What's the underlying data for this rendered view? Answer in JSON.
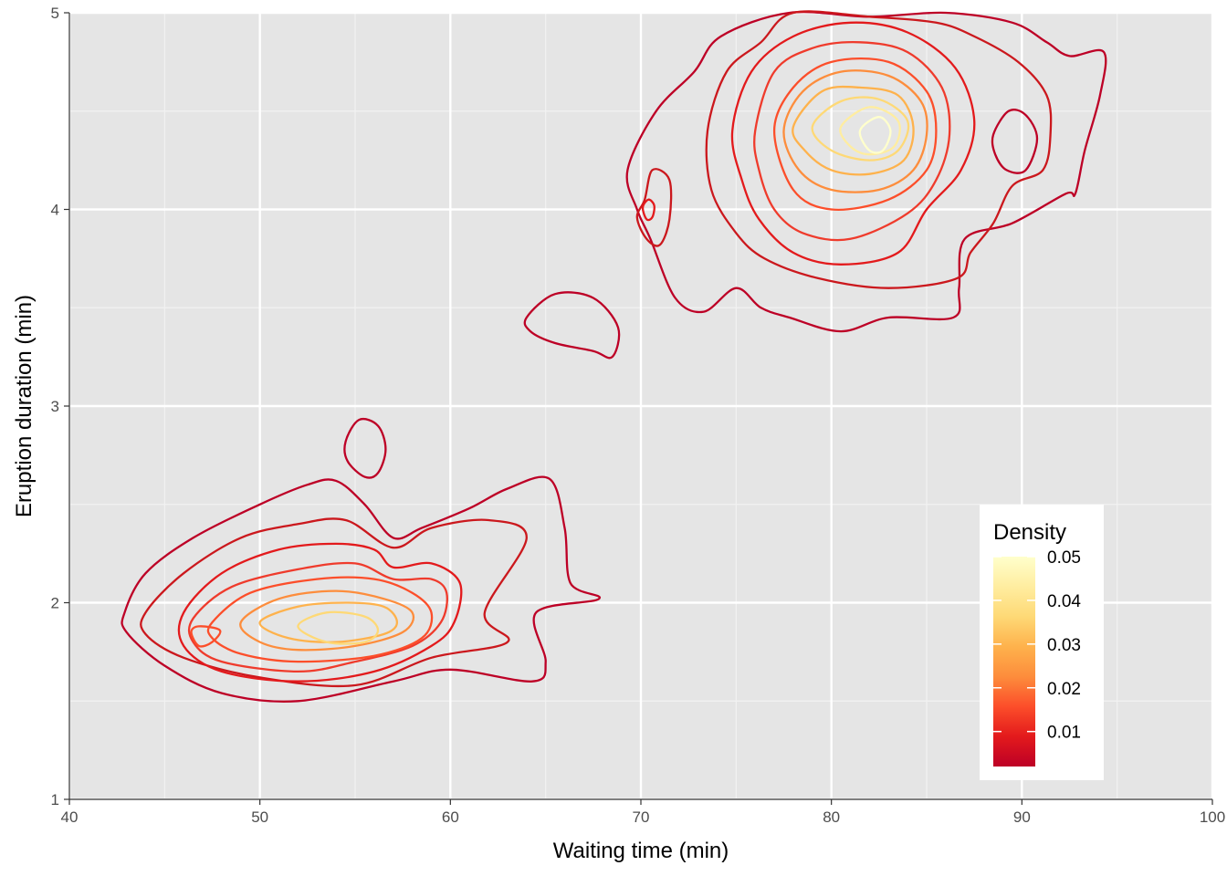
{
  "chart_data": {
    "type": "contour",
    "title": "",
    "xlabel": "Waiting time (min)",
    "ylabel": "Eruption duration (min)",
    "xlim": [
      40,
      100
    ],
    "ylim": [
      1,
      5
    ],
    "x_ticks": [
      40,
      50,
      60,
      70,
      80,
      90,
      100
    ],
    "y_ticks": [
      1,
      2,
      3,
      4,
      5
    ],
    "grid": true,
    "background": "#e5e5e5",
    "legend": {
      "title": "Density",
      "placement": "bottom-right-inside",
      "breaks": [
        0.05,
        0.04,
        0.03,
        0.02,
        0.01
      ],
      "range": [
        0.002,
        0.05
      ],
      "colors": [
        "#ffffcc",
        "#ffeda0",
        "#fed976",
        "#feb24c",
        "#fd8d3c",
        "#fc4e2a",
        "#e31a1c",
        "#bd0026"
      ]
    },
    "contours": [
      {
        "level": 0.005,
        "color": "#bd0026",
        "points": [
          [
            42.9,
            1.95
          ],
          [
            44,
            2.15
          ],
          [
            46.5,
            2.33
          ],
          [
            50,
            2.5
          ],
          [
            52.5,
            2.6
          ],
          [
            54,
            2.62
          ],
          [
            55.5,
            2.5
          ],
          [
            57,
            2.33
          ],
          [
            58.5,
            2.38
          ],
          [
            61,
            2.48
          ],
          [
            63,
            2.58
          ],
          [
            65.2,
            2.63
          ],
          [
            66,
            2.38
          ],
          [
            66.3,
            2.1
          ],
          [
            67.8,
            2.02
          ],
          [
            64.5,
            1.95
          ],
          [
            65,
            1.7
          ],
          [
            64.3,
            1.6
          ],
          [
            60,
            1.66
          ],
          [
            57,
            1.6
          ],
          [
            52,
            1.5
          ],
          [
            48,
            1.54
          ],
          [
            45,
            1.68
          ],
          [
            43,
            1.85
          ]
        ]
      },
      {
        "level": 0.005,
        "color": "#bd0026",
        "points": [
          [
            69.3,
            4.2
          ],
          [
            70.8,
            4.5
          ],
          [
            72.8,
            4.7
          ],
          [
            74.2,
            4.88
          ],
          [
            77.8,
            5
          ],
          [
            82,
            4.98
          ],
          [
            86,
            5
          ],
          [
            89.5,
            4.95
          ],
          [
            91.3,
            4.85
          ],
          [
            92.5,
            4.78
          ],
          [
            94.3,
            4.8
          ],
          [
            94.1,
            4.58
          ],
          [
            93.3,
            4.3
          ],
          [
            92.8,
            4.08
          ],
          [
            92.3,
            4.08
          ],
          [
            89.5,
            3.93
          ],
          [
            87,
            3.85
          ],
          [
            86.7,
            3.6
          ],
          [
            86.4,
            3.45
          ],
          [
            83,
            3.45
          ],
          [
            80.5,
            3.38
          ],
          [
            77.8,
            3.45
          ],
          [
            76.3,
            3.5
          ],
          [
            75,
            3.6
          ],
          [
            73.3,
            3.48
          ],
          [
            71.8,
            3.55
          ],
          [
            70.5,
            3.85
          ],
          [
            69.8,
            4
          ]
        ]
      },
      {
        "level": 0.01,
        "color": "#cb181d",
        "points": [
          [
            44,
            1.95
          ],
          [
            46,
            2.15
          ],
          [
            49,
            2.33
          ],
          [
            52,
            2.4
          ],
          [
            54.5,
            2.42
          ],
          [
            57,
            2.28
          ],
          [
            59,
            2.38
          ],
          [
            62,
            2.42
          ],
          [
            64,
            2.33
          ],
          [
            61.8,
            1.95
          ],
          [
            63,
            1.8
          ],
          [
            59,
            1.72
          ],
          [
            55,
            1.58
          ],
          [
            50,
            1.62
          ],
          [
            46,
            1.72
          ],
          [
            44,
            1.84
          ]
        ]
      },
      {
        "level": 0.01,
        "color": "#cb181d",
        "points": [
          [
            73.5,
            4.4
          ],
          [
            74.5,
            4.7
          ],
          [
            76.3,
            4.85
          ],
          [
            78,
            5
          ],
          [
            82,
            4.98
          ],
          [
            85.5,
            4.95
          ],
          [
            87.5,
            4.88
          ],
          [
            89.8,
            4.75
          ],
          [
            91.3,
            4.58
          ],
          [
            91.5,
            4.38
          ],
          [
            91.1,
            4.2
          ],
          [
            89.5,
            4.12
          ],
          [
            88.5,
            3.93
          ],
          [
            87.3,
            3.78
          ],
          [
            86.6,
            3.65
          ],
          [
            83,
            3.6
          ],
          [
            79.3,
            3.65
          ],
          [
            76.5,
            3.75
          ],
          [
            75,
            3.88
          ],
          [
            73.7,
            4.1
          ]
        ]
      },
      {
        "level": 0.015,
        "color": "#e31a1c",
        "points": [
          [
            46,
            1.95
          ],
          [
            48,
            2.15
          ],
          [
            51,
            2.27
          ],
          [
            54,
            2.3
          ],
          [
            56,
            2.27
          ],
          [
            57,
            2.18
          ],
          [
            59,
            2.2
          ],
          [
            60.5,
            2.1
          ],
          [
            60.2,
            1.9
          ],
          [
            59,
            1.78
          ],
          [
            56,
            1.65
          ],
          [
            52,
            1.6
          ],
          [
            48,
            1.65
          ],
          [
            46,
            1.78
          ]
        ]
      },
      {
        "level": 0.015,
        "color": "#e31a1c",
        "points": [
          [
            74.8,
            4.4
          ],
          [
            75.8,
            4.7
          ],
          [
            78,
            4.88
          ],
          [
            81,
            4.95
          ],
          [
            84,
            4.9
          ],
          [
            86.5,
            4.72
          ],
          [
            87.5,
            4.45
          ],
          [
            86.8,
            4.2
          ],
          [
            85,
            4
          ],
          [
            83.5,
            3.78
          ],
          [
            80.5,
            3.72
          ],
          [
            78,
            3.78
          ],
          [
            76.2,
            3.95
          ],
          [
            75.3,
            4.15
          ]
        ]
      },
      {
        "level": 0.02,
        "color": "#ef3b2c",
        "points": [
          [
            46.5,
            1.92
          ],
          [
            48.5,
            2.08
          ],
          [
            52,
            2.17
          ],
          [
            55,
            2.2
          ],
          [
            57,
            2.12
          ],
          [
            59,
            2.12
          ],
          [
            59.8,
            2.05
          ],
          [
            59.5,
            1.9
          ],
          [
            58,
            1.78
          ],
          [
            55,
            1.7
          ],
          [
            52,
            1.65
          ],
          [
            48,
            1.7
          ],
          [
            46.5,
            1.8
          ]
        ]
      },
      {
        "level": 0.02,
        "color": "#ef3b2c",
        "points": [
          [
            76,
            4.4
          ],
          [
            77,
            4.7
          ],
          [
            79,
            4.82
          ],
          [
            81.5,
            4.85
          ],
          [
            84,
            4.8
          ],
          [
            85.8,
            4.62
          ],
          [
            86.2,
            4.38
          ],
          [
            85.5,
            4.15
          ],
          [
            84,
            3.98
          ],
          [
            81,
            3.85
          ],
          [
            78.5,
            3.88
          ],
          [
            77,
            4
          ],
          [
            76.2,
            4.2
          ]
        ]
      },
      {
        "level": 0.025,
        "color": "#fc4e2a",
        "points": [
          [
            47.5,
            1.9
          ],
          [
            49.5,
            2.05
          ],
          [
            53,
            2.12
          ],
          [
            56,
            2.12
          ],
          [
            58,
            2.05
          ],
          [
            59,
            1.95
          ],
          [
            58.5,
            1.82
          ],
          [
            56,
            1.73
          ],
          [
            52,
            1.7
          ],
          [
            49,
            1.74
          ],
          [
            47.5,
            1.82
          ]
        ]
      },
      {
        "level": 0.025,
        "color": "#fc4e2a",
        "points": [
          [
            77,
            4.4
          ],
          [
            78,
            4.62
          ],
          [
            80,
            4.75
          ],
          [
            83,
            4.75
          ],
          [
            85,
            4.6
          ],
          [
            85.5,
            4.4
          ],
          [
            85,
            4.2
          ],
          [
            83,
            4.05
          ],
          [
            80,
            4
          ],
          [
            78,
            4.1
          ]
        ]
      },
      {
        "level": 0.03,
        "color": "#fd8d3c",
        "points": [
          [
            49,
            1.9
          ],
          [
            51,
            2.02
          ],
          [
            54,
            2.06
          ],
          [
            56.5,
            2.02
          ],
          [
            58,
            1.95
          ],
          [
            57.5,
            1.85
          ],
          [
            55,
            1.78
          ],
          [
            52,
            1.76
          ],
          [
            50,
            1.8
          ]
        ]
      },
      {
        "level": 0.03,
        "color": "#fd8d3c",
        "points": [
          [
            77.5,
            4.4
          ],
          [
            78.5,
            4.6
          ],
          [
            80.5,
            4.7
          ],
          [
            83,
            4.68
          ],
          [
            84.7,
            4.55
          ],
          [
            85,
            4.38
          ],
          [
            84.3,
            4.2
          ],
          [
            82.5,
            4.1
          ],
          [
            80,
            4.1
          ],
          [
            78.3,
            4.2
          ]
        ]
      },
      {
        "level": 0.035,
        "color": "#feb24c",
        "points": [
          [
            50,
            1.9
          ],
          [
            52,
            1.98
          ],
          [
            54.5,
            2
          ],
          [
            56.5,
            1.98
          ],
          [
            57.2,
            1.9
          ],
          [
            56.5,
            1.84
          ],
          [
            54,
            1.8
          ],
          [
            51.5,
            1.82
          ]
        ]
      },
      {
        "level": 0.035,
        "color": "#feb24c",
        "points": [
          [
            78,
            4.42
          ],
          [
            79.5,
            4.6
          ],
          [
            81.5,
            4.62
          ],
          [
            83.5,
            4.58
          ],
          [
            84.3,
            4.42
          ],
          [
            83.8,
            4.25
          ],
          [
            82,
            4.18
          ],
          [
            80,
            4.2
          ],
          [
            78.6,
            4.3
          ]
        ]
      },
      {
        "level": 0.04,
        "color": "#fed976",
        "points": [
          [
            52,
            1.88
          ],
          [
            53.5,
            1.95
          ],
          [
            55.5,
            1.93
          ],
          [
            56.2,
            1.86
          ],
          [
            55.5,
            1.8
          ],
          [
            53.5,
            1.8
          ]
        ]
      },
      {
        "level": 0.04,
        "color": "#fed976",
        "points": [
          [
            79,
            4.42
          ],
          [
            80.5,
            4.55
          ],
          [
            82.5,
            4.56
          ],
          [
            84,
            4.45
          ],
          [
            83.5,
            4.3
          ],
          [
            82,
            4.25
          ],
          [
            80,
            4.3
          ]
        ]
      },
      {
        "level": 0.045,
        "color": "#ffeda0",
        "points": [
          [
            80.5,
            4.42
          ],
          [
            82,
            4.52
          ],
          [
            83.5,
            4.45
          ],
          [
            83.3,
            4.32
          ],
          [
            82,
            4.28
          ],
          [
            81,
            4.32
          ]
        ]
      },
      {
        "level": 0.05,
        "color": "#ffffcc",
        "points": [
          [
            81.5,
            4.4
          ],
          [
            82.5,
            4.47
          ],
          [
            83.1,
            4.4
          ],
          [
            82.7,
            4.3
          ],
          [
            82,
            4.3
          ]
        ]
      },
      {
        "level": 0.005,
        "color": "#bd0026",
        "points": [
          [
            64,
            3.45
          ],
          [
            65.5,
            3.57
          ],
          [
            67.5,
            3.55
          ],
          [
            68.8,
            3.4
          ],
          [
            68.5,
            3.25
          ],
          [
            67.5,
            3.28
          ],
          [
            65.5,
            3.32
          ],
          [
            64.2,
            3.38
          ]
        ]
      },
      {
        "level": 0.005,
        "color": "#bd0026",
        "points": [
          [
            54.5,
            2.82
          ],
          [
            55.2,
            2.93
          ],
          [
            56.2,
            2.9
          ],
          [
            56.6,
            2.78
          ],
          [
            56.2,
            2.66
          ],
          [
            55.5,
            2.64
          ],
          [
            54.6,
            2.72
          ]
        ]
      },
      {
        "level": 0.005,
        "color": "#bd0026",
        "points": [
          [
            88.5,
            4.38
          ],
          [
            89.3,
            4.5
          ],
          [
            90.2,
            4.48
          ],
          [
            90.8,
            4.36
          ],
          [
            90.2,
            4.2
          ],
          [
            89.2,
            4.2
          ],
          [
            88.6,
            4.28
          ]
        ]
      },
      {
        "level": 0.01,
        "color": "#cb181d",
        "points": [
          [
            69.8,
            3.96
          ],
          [
            70.2,
            4.05
          ],
          [
            70.6,
            4.2
          ],
          [
            71.5,
            4.15
          ],
          [
            71.5,
            3.95
          ],
          [
            71,
            3.82
          ],
          [
            70.3,
            3.85
          ]
        ]
      },
      {
        "level": 0.015,
        "color": "#e31a1c",
        "points": [
          [
            70.1,
            4.01
          ],
          [
            70.4,
            4.05
          ],
          [
            70.7,
            4.02
          ],
          [
            70.6,
            3.96
          ],
          [
            70.3,
            3.95
          ]
        ]
      },
      {
        "level": 0.025,
        "color": "#fc4e2a",
        "points": [
          [
            46.4,
            1.85
          ],
          [
            46.8,
            1.88
          ],
          [
            47.9,
            1.86
          ],
          [
            47.5,
            1.8
          ],
          [
            46.8,
            1.78
          ]
        ]
      }
    ]
  }
}
